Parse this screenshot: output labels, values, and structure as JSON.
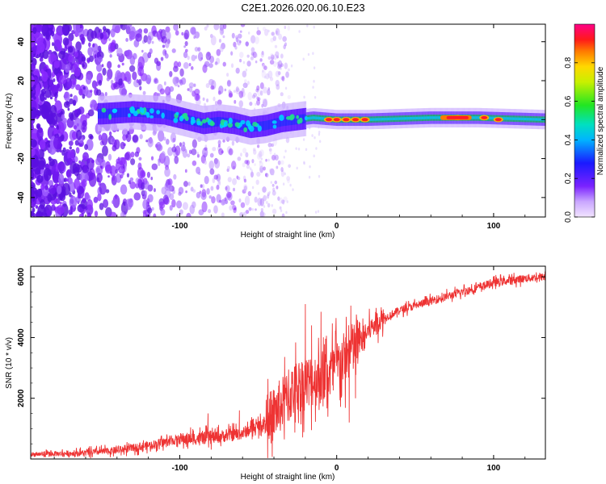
{
  "page": {
    "title": "C2E1.2026.020.06.10.E23"
  },
  "colors": {
    "snr_line": "#ee3333",
    "band_core": "#1faa70",
    "background": "#ffffff"
  },
  "chart_data": [
    {
      "type": "heatmap",
      "title": "C2E1.2026.020.06.10.E23",
      "xlabel": "Height of straight line (km)",
      "ylabel": "Frequency (Hz)",
      "xlim": [
        -195,
        133
      ],
      "ylim": [
        -50,
        49
      ],
      "xticks": [
        -100,
        0,
        100
      ],
      "yticks": [
        -40,
        -20,
        0,
        20,
        40
      ],
      "colorbar": {
        "label": "Normalized spectral amplitude",
        "range": [
          0,
          1
        ],
        "ticks": [
          "0.0",
          "0.2",
          "0.4",
          "0.6",
          "0.8"
        ],
        "tick_values": [
          0.0,
          0.2,
          0.4,
          0.6,
          0.8
        ]
      },
      "band_center": [
        {
          "x": -150,
          "y": 3
        },
        {
          "x": -130,
          "y": 4
        },
        {
          "x": -110,
          "y": 3
        },
        {
          "x": -95,
          "y": 0
        },
        {
          "x": -85,
          "y": -2
        },
        {
          "x": -75,
          "y": -1
        },
        {
          "x": -65,
          "y": -2
        },
        {
          "x": -55,
          "y": -4
        },
        {
          "x": -45,
          "y": -3
        },
        {
          "x": -35,
          "y": -1
        },
        {
          "x": -25,
          "y": 0
        },
        {
          "x": -15,
          "y": 1
        },
        {
          "x": 0,
          "y": 0
        },
        {
          "x": 20,
          "y": 0
        },
        {
          "x": 60,
          "y": 1
        },
        {
          "x": 90,
          "y": 1
        },
        {
          "x": 133,
          "y": 0
        }
      ],
      "hot_spots": [
        {
          "x": -5,
          "y": 0
        },
        {
          "x": 0,
          "y": 0
        },
        {
          "x": 6,
          "y": 0
        },
        {
          "x": 12,
          "y": 0
        },
        {
          "x": 18,
          "y": 0
        },
        {
          "x": 77,
          "y": 1
        },
        {
          "x": 94,
          "y": 1
        },
        {
          "x": 103,
          "y": 0
        }
      ]
    },
    {
      "type": "line",
      "xlabel": "Height of straight line (km)",
      "ylabel": "SNR (10 * v/v)",
      "xlim": [
        -195,
        133
      ],
      "ylim": [
        0,
        6350
      ],
      "xticks": [
        -100,
        0,
        100
      ],
      "yticks": [
        2000,
        4000,
        6000
      ],
      "series": [
        {
          "name": "SNR",
          "envelope": [
            {
              "x": -195,
              "y": 150
            },
            {
              "x": -160,
              "y": 200
            },
            {
              "x": -140,
              "y": 280
            },
            {
              "x": -120,
              "y": 450
            },
            {
              "x": -100,
              "y": 650
            },
            {
              "x": -80,
              "y": 700
            },
            {
              "x": -60,
              "y": 850
            },
            {
              "x": -45,
              "y": 1200
            },
            {
              "x": -35,
              "y": 1800
            },
            {
              "x": -25,
              "y": 2400
            },
            {
              "x": -15,
              "y": 2600
            },
            {
              "x": -5,
              "y": 2800
            },
            {
              "x": 5,
              "y": 3300
            },
            {
              "x": 15,
              "y": 3900
            },
            {
              "x": 25,
              "y": 4500
            },
            {
              "x": 40,
              "y": 4900
            },
            {
              "x": 60,
              "y": 5200
            },
            {
              "x": 80,
              "y": 5500
            },
            {
              "x": 100,
              "y": 5800
            },
            {
              "x": 120,
              "y": 5950
            },
            {
              "x": 133,
              "y": 6000
            }
          ],
          "spikes": [
            {
              "x": -82,
              "y": 1500
            },
            {
              "x": -62,
              "y": 1600
            },
            {
              "x": -20,
              "y": 5100
            },
            {
              "x": -16,
              "y": 4400
            },
            {
              "x": -10,
              "y": 4850
            },
            {
              "x": 5,
              "y": 2800
            },
            {
              "x": 8,
              "y": 1200
            },
            {
              "x": 9,
              "y": 5050
            },
            {
              "x": 12,
              "y": 2000
            }
          ]
        }
      ]
    }
  ]
}
